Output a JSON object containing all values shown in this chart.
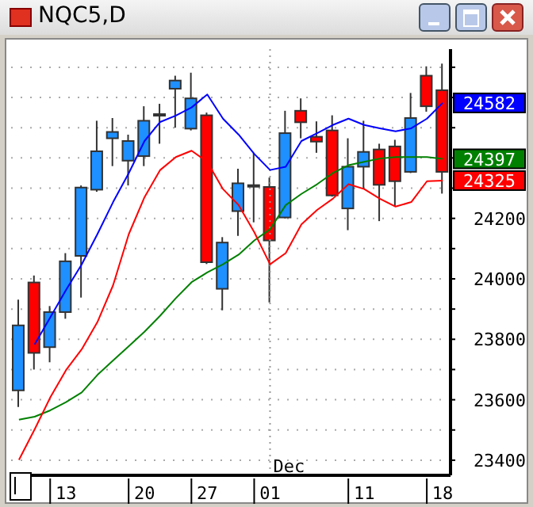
{
  "chart_data": {
    "type": "candlestick",
    "title": "NQC5,D",
    "categories": [
      null,
      null,
      null,
      "13",
      null,
      null,
      null,
      null,
      "20",
      null,
      null,
      null,
      "27",
      null,
      null,
      null,
      "01",
      null,
      null,
      null,
      null,
      null,
      "11",
      null,
      null,
      null,
      null,
      "18"
    ],
    "ohlc": [
      [
        23631,
        23931,
        23576,
        23846
      ],
      [
        23988,
        24011,
        23700,
        23755
      ],
      [
        23774,
        23910,
        23724,
        23890
      ],
      [
        23890,
        24085,
        23868,
        24058
      ],
      [
        24076,
        24309,
        23938,
        24302
      ],
      [
        24295,
        24523,
        24288,
        24422
      ],
      [
        24465,
        24532,
        24373,
        24486
      ],
      [
        24391,
        24477,
        24309,
        24456
      ],
      [
        24406,
        24571,
        24373,
        24523
      ],
      [
        24540,
        24579,
        24447,
        24545
      ],
      [
        24629,
        24672,
        24500,
        24656
      ],
      [
        24497,
        24682,
        24491,
        24597
      ],
      [
        24541,
        24550,
        24049,
        24055
      ],
      [
        23967,
        24138,
        23896,
        24120
      ],
      [
        24224,
        24364,
        24142,
        24316
      ],
      [
        24305,
        24417,
        24187,
        24310
      ],
      [
        24304,
        24335,
        23922,
        24127
      ],
      [
        24203,
        24556,
        24200,
        24482
      ],
      [
        24556,
        24597,
        24465,
        24518
      ],
      [
        24470,
        24521,
        24417,
        24454
      ],
      [
        24491,
        24541,
        24272,
        24276
      ],
      [
        24233,
        24465,
        24161,
        24371
      ],
      [
        24371,
        24523,
        24297,
        24420
      ],
      [
        24428,
        24447,
        24191,
        24311
      ],
      [
        24438,
        24460,
        24240,
        24323
      ],
      [
        24354,
        24615,
        24350,
        24532
      ],
      [
        24672,
        24703,
        24553,
        24571
      ],
      [
        24624,
        24712,
        24282,
        24354
      ]
    ],
    "colors": [
      "#1e90ff",
      "#ff0000",
      "#1e90ff",
      "#1e90ff",
      "#1e90ff",
      "#1e90ff",
      "#1e90ff",
      "#1e90ff",
      "#1e90ff",
      "#1e90ff",
      "#1e90ff",
      "#1e90ff",
      "#ff0000",
      "#1e90ff",
      "#1e90ff",
      "#1e90ff",
      "#ff0000",
      "#1e90ff",
      "#ff0000",
      "#ff0000",
      "#ff0000",
      "#1e90ff",
      "#1e90ff",
      "#ff0000",
      "#ff0000",
      "#1e90ff",
      "#ff0000",
      "#ff0000"
    ],
    "series": [
      {
        "type": "line",
        "color": "#0000ff",
        "values": [
          null,
          23783,
          23873,
          23963,
          24048,
          24148,
          24254,
          24350,
          24456,
          24519,
          24540,
          24567,
          24610,
          24530,
          24477,
          24413,
          24360,
          24371,
          24456,
          24482,
          24509,
          24530,
          24509,
          24498,
          24488,
          24498,
          24530,
          24582
        ],
        "value_labels": [
          null,
          null,
          null,
          null,
          null,
          null,
          null,
          null,
          null,
          null,
          null,
          null,
          null,
          null,
          null,
          null,
          null,
          null,
          null,
          null,
          null,
          null,
          null,
          null,
          null,
          null,
          null,
          "24582"
        ]
      },
      {
        "type": "line",
        "color": "#008000",
        "values": [
          23534,
          23544,
          23565,
          23592,
          23624,
          23682,
          23730,
          23777,
          23825,
          23878,
          23936,
          23989,
          24021,
          24048,
          24080,
          24127,
          24164,
          24244,
          24281,
          24313,
          24350,
          24376,
          24387,
          24398,
          24403,
          24403,
          24403,
          24397
        ],
        "value_labels": [
          null,
          null,
          null,
          null,
          null,
          null,
          null,
          null,
          null,
          null,
          null,
          null,
          null,
          null,
          null,
          null,
          null,
          null,
          null,
          null,
          null,
          null,
          null,
          null,
          null,
          null,
          null,
          "24397"
        ]
      },
      {
        "type": "line",
        "color": "#ff0000",
        "values": [
          23401,
          23502,
          23608,
          23698,
          23767,
          23857,
          23979,
          24148,
          24270,
          24360,
          24403,
          24424,
          24387,
          24297,
          24244,
          24154,
          24048,
          24085,
          24180,
          24228,
          24265,
          24313,
          24297,
          24265,
          24239,
          24254,
          24323,
          24325
        ],
        "value_labels": [
          null,
          null,
          null,
          null,
          null,
          null,
          null,
          null,
          null,
          null,
          null,
          null,
          null,
          null,
          null,
          null,
          null,
          null,
          null,
          null,
          null,
          null,
          null,
          null,
          null,
          null,
          null,
          "24325"
        ]
      }
    ],
    "ylim": [
      23350,
      24760
    ],
    "yticks": [
      23400,
      {
        "value": 23500,
        "label": null
      },
      23600,
      {
        "value": 23700,
        "label": null
      },
      23800,
      {
        "value": 23900,
        "label": null
      },
      24000,
      {
        "value": 24100,
        "label": null
      },
      24200,
      {
        "value": 24300,
        "label": null
      },
      {
        "value": 24400,
        "label": null
      },
      {
        "value": 24500,
        "label": null
      },
      {
        "value": 24600,
        "label": null
      },
      {
        "value": 24700,
        "label": null
      }
    ],
    "grid": "y",
    "ref_lines": [
      {
        "axis": "x",
        "value": "01",
        "label": "Dec",
        "line_style": "dotted"
      }
    ]
  }
}
